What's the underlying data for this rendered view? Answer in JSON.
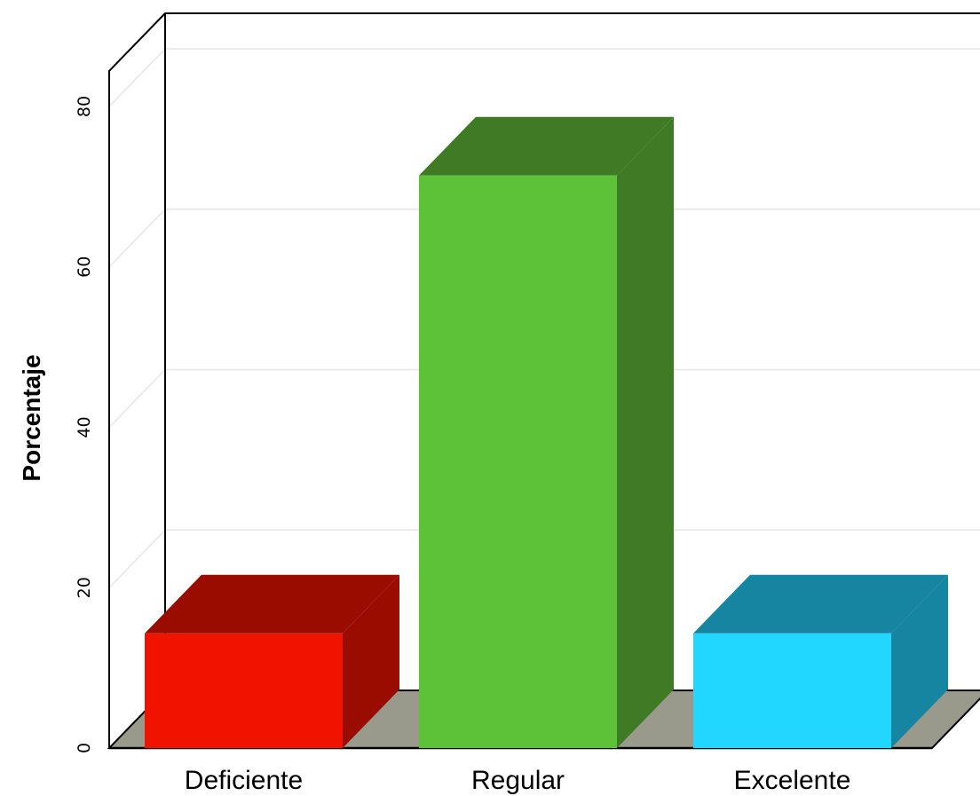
{
  "chart_data": {
    "type": "bar",
    "categories": [
      "Deficiente",
      "Regular",
      "Excelente"
    ],
    "values": [
      14.3,
      71.4,
      14.3
    ],
    "colors": {
      "front": [
        "#f01400",
        "#5ec238",
        "#21d6ff"
      ],
      "top": [
        "#9a0c00",
        "#3e7b24",
        "#1585a1"
      ],
      "side": [
        "#9a0c00",
        "#3e7b24",
        "#1585a1"
      ],
      "floor": "#999a8c",
      "gridline": "#e6e6e6"
    },
    "ylabel": "Porcentaje",
    "xlabel": "",
    "ylim": [
      0,
      80
    ],
    "yticks": [
      "0",
      "20",
      "40",
      "60",
      "80"
    ],
    "grid": true,
    "three_d": true
  }
}
